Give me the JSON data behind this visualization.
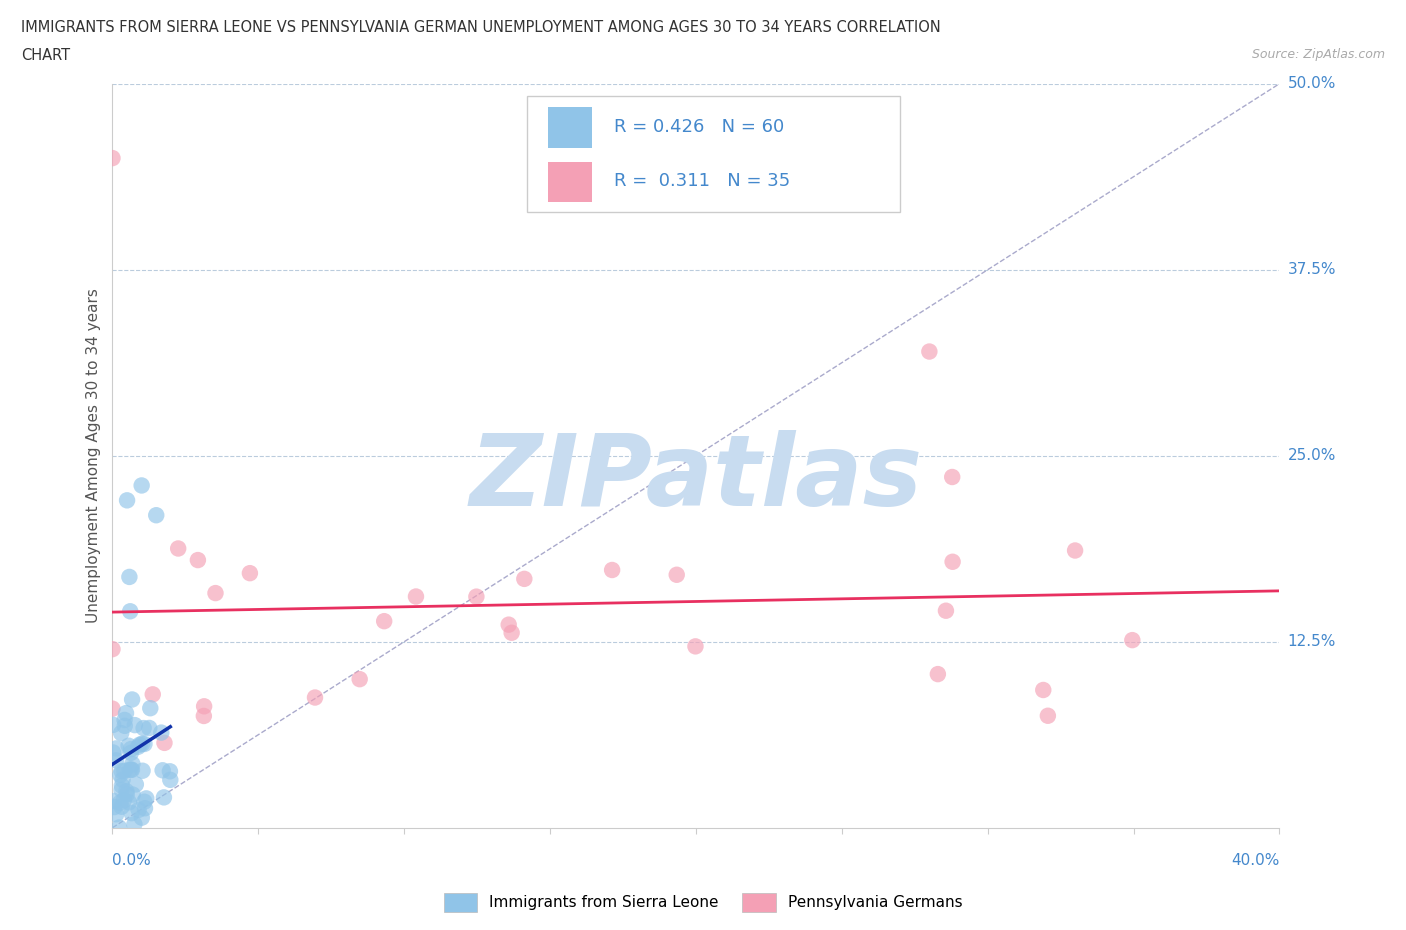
{
  "title_line1": "IMMIGRANTS FROM SIERRA LEONE VS PENNSYLVANIA GERMAN UNEMPLOYMENT AMONG AGES 30 TO 34 YEARS CORRELATION",
  "title_line2": "CHART",
  "source_text": "Source: ZipAtlas.com",
  "ylabel": "Unemployment Among Ages 30 to 34 years",
  "xlim": [
    0.0,
    0.4
  ],
  "ylim": [
    0.0,
    0.5
  ],
  "xticks": [
    0.0,
    0.05,
    0.1,
    0.15,
    0.2,
    0.25,
    0.3,
    0.35,
    0.4
  ],
  "ytick_vals": [
    0.0,
    0.125,
    0.25,
    0.375,
    0.5
  ],
  "ytick_labels": [
    "0.0%",
    "12.5%",
    "25.0%",
    "37.5%",
    "50.0%"
  ],
  "blue_color": "#90C4E8",
  "pink_color": "#F4A0B5",
  "blue_r": 0.426,
  "blue_n": 60,
  "pink_r": 0.311,
  "pink_n": 35,
  "watermark": "ZIPatlas",
  "watermark_color": "#C8DCF0",
  "grid_color": "#BBCCDD",
  "trend_blue_color": "#1133AA",
  "trend_pink_color": "#E83060",
  "diag_color": "#AAAACC",
  "tick_label_color": "#4488CC",
  "title_color": "#333333",
  "source_color": "#AAAAAA",
  "legend_text_color": "#4488CC",
  "legend_r_color": "#333333"
}
